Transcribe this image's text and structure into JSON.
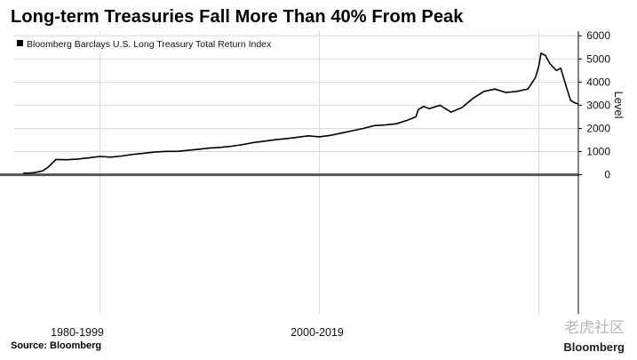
{
  "title": "Long-term Treasuries Fall More Than 40% From Peak",
  "source": "Source: Bloomberg",
  "watermark": {
    "text": "老虎社区",
    "brand": "Bloomberg"
  },
  "colors": {
    "line": "#000000",
    "grid": "#d9d9d9",
    "zero_line": "#555555"
  },
  "chart_data": {
    "type": "line",
    "title": "Long-term Treasuries Fall More Than 40% From Peak",
    "ylabel": "Level",
    "y_axis_position": "right",
    "ylim": [
      -6000,
      6200
    ],
    "yticks": [
      0,
      1000,
      2000,
      3000,
      4000,
      5000,
      6000
    ],
    "grid": true,
    "legend": {
      "position": "top-left",
      "entries": [
        "Bloomberg Barclays U.S. Long Treasury Total Return Index"
      ]
    },
    "x_period_labels": [
      "1980-1999",
      "2000-2019"
    ],
    "x_period_boundaries": [
      1980,
      2000,
      2020
    ],
    "xlim": [
      1972.2,
      2023.6
    ],
    "series": [
      {
        "name": "Bloomberg Barclays U.S. Long Treasury Total Return Index",
        "x": [
          1973,
          1974,
          1974.8,
          1975.3,
          1976,
          1977,
          1978,
          1979,
          1980,
          1981,
          1982,
          1983,
          1984,
          1985,
          1986,
          1987,
          1988,
          1989,
          1990,
          1991,
          1992,
          1993,
          1994,
          1995,
          1996,
          1997,
          1998,
          1999,
          2000,
          2001,
          2002,
          2003,
          2004,
          2005,
          2006,
          2007,
          2008,
          2008.8,
          2009,
          2009.5,
          2010,
          2011,
          2012,
          2013,
          2013.5,
          2014,
          2015,
          2016,
          2017,
          2018,
          2019,
          2019.7,
          2020,
          2020.2,
          2020.6,
          2021,
          2021.6,
          2022,
          2022.5,
          2022.9,
          2023.3,
          2023.6
        ],
        "y": [
          60,
          90,
          170,
          330,
          660,
          650,
          680,
          730,
          790,
          760,
          810,
          880,
          930,
          980,
          1010,
          1010,
          1050,
          1100,
          1150,
          1180,
          1230,
          1300,
          1390,
          1450,
          1510,
          1560,
          1620,
          1680,
          1640,
          1700,
          1800,
          1900,
          2000,
          2120,
          2150,
          2200,
          2350,
          2500,
          2800,
          2950,
          2850,
          3000,
          2700,
          2900,
          3100,
          3300,
          3600,
          3700,
          3550,
          3600,
          3700,
          4200,
          4700,
          5250,
          5150,
          4800,
          4500,
          4600,
          3800,
          3200,
          3100,
          3050
        ]
      }
    ]
  }
}
